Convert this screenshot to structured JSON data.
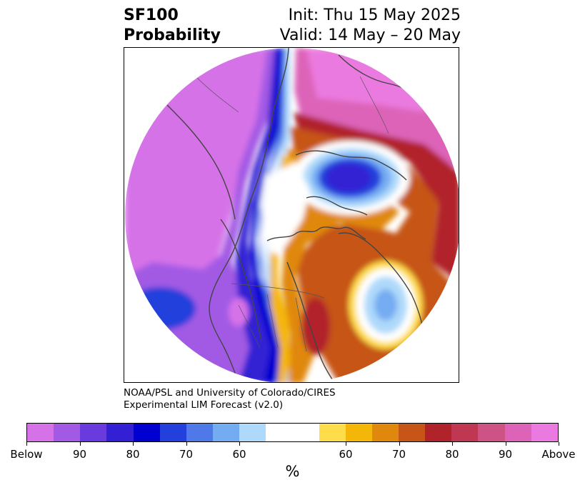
{
  "header": {
    "title_line1": "SF100",
    "title_line2": "Probability",
    "init_text": "Init: Thu 15 May 2025",
    "valid_text": "Valid: 14 May – 20 May"
  },
  "credit": {
    "line1": "NOAA/PSL and University of Colorado/CIRES",
    "line2": "Experimental LIM Forecast (v2.0)"
  },
  "colorbar": {
    "colors": [
      "#d672e8",
      "#a25ae4",
      "#6a3bdc",
      "#3320d4",
      "#0000d0",
      "#2440dc",
      "#4f79e8",
      "#74acf2",
      "#aed9fa",
      "#ffffff",
      "#ffffff",
      "#fedd4a",
      "#f4b609",
      "#e0880d",
      "#c65517",
      "#b1232a",
      "#c03752",
      "#cd5384",
      "#dc63b8",
      "#eb7ae0"
    ],
    "tick_labels": [
      "Below",
      "90",
      "80",
      "70",
      "60",
      "60",
      "70",
      "80",
      "90",
      "Above"
    ],
    "unit": "%"
  },
  "map": {
    "projection": "north-polar-stereographic",
    "legend_semantics": "blue-purple = below normal probability, yellow-red-pink = above normal probability",
    "colors": {
      "below_far": "#d672e8",
      "below_90": "#a25ae4",
      "below_85": "#6a3bdc",
      "below_80": "#3320d4",
      "below_75": "#0000d0",
      "below_70": "#2440dc",
      "below_65": "#4f79e8",
      "below_60": "#74acf2",
      "below_55": "#aed9fa",
      "neutral": "#ffffff",
      "above_55": "#fedd4a",
      "above_60": "#f4b609",
      "above_65": "#e0880d",
      "above_70": "#c65517",
      "above_75": "#b1232a",
      "above_80": "#c03752",
      "above_85": "#cd5384",
      "above_90": "#dc63b8",
      "above_far": "#eb7ae0",
      "coastline": "#444444"
    }
  }
}
